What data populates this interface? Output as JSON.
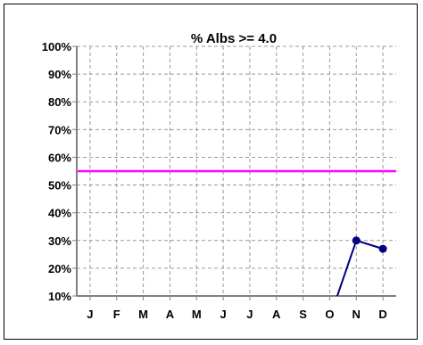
{
  "chart_data": {
    "type": "line",
    "title": "%  Albs >= 4.0",
    "xlabel": "",
    "ylabel": "",
    "categories": [
      "J",
      "F",
      "M",
      "A",
      "M",
      "J",
      "J",
      "A",
      "S",
      "O",
      "N",
      "D"
    ],
    "yticks": [
      "10%",
      "20%",
      "30%",
      "40%",
      "50%",
      "60%",
      "70%",
      "80%",
      "90%",
      "100%"
    ],
    "ylim": [
      10,
      100
    ],
    "grid": true,
    "legend": "none",
    "series": [
      {
        "values": [
          null,
          null,
          null,
          null,
          null,
          null,
          null,
          null,
          null,
          2,
          30,
          27
        ],
        "color": "#000080"
      }
    ],
    "reference_line": {
      "value": 55,
      "color": "#ff00ff"
    }
  }
}
